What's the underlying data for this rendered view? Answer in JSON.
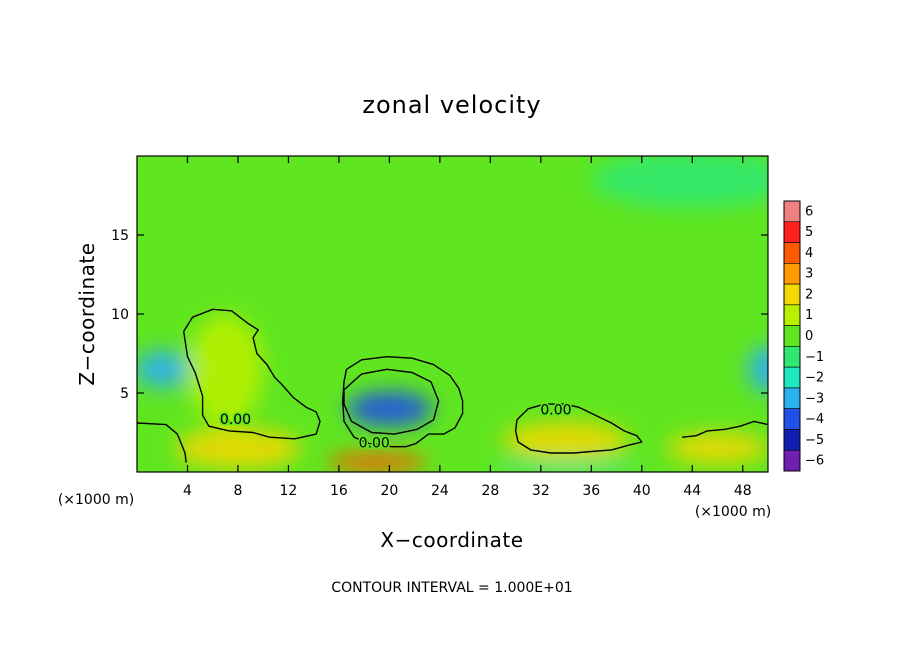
{
  "chart_data": {
    "type": "heatmap",
    "title": "zonal velocity",
    "xlabel": "X−coordinate",
    "ylabel": "Z−coordinate",
    "x_unit": "(×1000 m)",
    "z_unit": "(×1000 m)",
    "xlim": [
      0,
      50
    ],
    "ylim": [
      0,
      20
    ],
    "x_ticks": [
      4,
      8,
      12,
      16,
      20,
      24,
      28,
      32,
      36,
      40,
      44,
      48
    ],
    "x_tick_labels": [
      "4",
      "8",
      "12",
      "16",
      "20",
      "24",
      "28",
      "32",
      "36",
      "40",
      "44",
      "48"
    ],
    "y_ticks": [
      5,
      10,
      15
    ],
    "y_tick_labels": [
      "5",
      "10",
      "15"
    ],
    "colorbar": {
      "levels": [
        6,
        5,
        4,
        3,
        2,
        1,
        0,
        -1,
        -2,
        -3,
        -4,
        -5,
        -6
      ],
      "labels": [
        "6",
        "5",
        "4",
        "3",
        "2",
        "1",
        "0",
        "−1",
        "−2",
        "−3",
        "−4",
        "−5",
        "−6"
      ],
      "colors": [
        "#f08080",
        "#ff2020",
        "#ff5a00",
        "#ff9a00",
        "#f0d800",
        "#b8f000",
        "#60e620",
        "#30e870",
        "#20e8c0",
        "#2bb0f0",
        "#2050e8",
        "#1020b0",
        "#7020b0"
      ]
    },
    "background_value": 0.4,
    "features": [
      {
        "x": 2,
        "z": 6.5,
        "value": -3.0,
        "rx": 2.2,
        "rz": 1.2
      },
      {
        "x": 50,
        "z": 6.5,
        "value": -3.0,
        "rx": 1.6,
        "rz": 1.5
      },
      {
        "x": 20,
        "z": 4.0,
        "value": -4.0,
        "rx": 3.4,
        "rz": 1.1
      },
      {
        "x": 19,
        "z": 0.6,
        "value": 3.5,
        "rx": 4.0,
        "rz": 0.6
      },
      {
        "x": 34,
        "z": 2.0,
        "value": 2.0,
        "rx": 5.0,
        "rz": 1.2
      },
      {
        "x": 46,
        "z": 1.5,
        "value": 2.0,
        "rx": 4.0,
        "rz": 1.0
      },
      {
        "x": 8,
        "z": 1.5,
        "value": 1.5,
        "rx": 5.0,
        "rz": 1.3
      },
      {
        "x": 7,
        "z": 6.5,
        "value": 1.0,
        "rx": 3.0,
        "rz": 3.5
      },
      {
        "x": 44,
        "z": 18.5,
        "value": -1.2,
        "rx": 8.0,
        "rz": 1.8
      },
      {
        "x": 34,
        "z": 0.2,
        "value": -2.0,
        "rx": 6.0,
        "rz": 0.3
      }
    ],
    "contours": [
      {
        "label": "0.00",
        "label_x": 7.8,
        "label_z": 3.3,
        "points": [
          [
            3.7,
            8.9
          ],
          [
            4.4,
            9.8
          ],
          [
            6.0,
            10.3
          ],
          [
            7.5,
            10.2
          ],
          [
            8.8,
            9.4
          ],
          [
            9.6,
            9.0
          ],
          [
            9.2,
            8.5
          ],
          [
            9.5,
            7.5
          ],
          [
            10.3,
            6.8
          ],
          [
            10.9,
            6.0
          ],
          [
            11.4,
            5.6
          ],
          [
            12.4,
            4.7
          ],
          [
            13.4,
            4.1
          ],
          [
            14.2,
            3.8
          ],
          [
            14.5,
            3.2
          ],
          [
            14.2,
            2.4
          ],
          [
            12.5,
            2.1
          ],
          [
            10.5,
            2.2
          ],
          [
            9.2,
            2.5
          ],
          [
            7.3,
            2.6
          ],
          [
            5.7,
            2.9
          ],
          [
            5.2,
            3.6
          ],
          [
            5.2,
            4.8
          ],
          [
            4.6,
            6.3
          ],
          [
            4.0,
            7.3
          ],
          [
            3.7,
            8.9
          ]
        ]
      },
      {
        "label": "0.00",
        "label_x": 18.8,
        "label_z": 1.8,
        "points": [
          [
            16.6,
            6.5
          ],
          [
            17.8,
            7.1
          ],
          [
            19.8,
            7.3
          ],
          [
            21.8,
            7.2
          ],
          [
            23.5,
            6.8
          ],
          [
            24.8,
            6.1
          ],
          [
            25.5,
            5.3
          ],
          [
            25.8,
            4.5
          ],
          [
            25.8,
            3.7
          ],
          [
            25.2,
            2.8
          ],
          [
            24.3,
            2.4
          ],
          [
            23.1,
            2.4
          ],
          [
            22.1,
            1.8
          ],
          [
            21.3,
            1.6
          ],
          [
            20.2,
            1.6
          ],
          [
            18.4,
            1.8
          ],
          [
            17.2,
            2.2
          ],
          [
            16.4,
            3.2
          ],
          [
            16.3,
            4.5
          ],
          [
            16.4,
            5.7
          ],
          [
            16.6,
            6.5
          ]
        ]
      },
      {
        "label": "",
        "label_x": 0,
        "label_z": 0,
        "points": [
          [
            16.4,
            5.2
          ],
          [
            17.8,
            6.2
          ],
          [
            19.8,
            6.5
          ],
          [
            21.8,
            6.3
          ],
          [
            23.3,
            5.7
          ],
          [
            23.9,
            4.5
          ],
          [
            23.5,
            3.3
          ],
          [
            22.2,
            2.7
          ],
          [
            20.4,
            2.4
          ],
          [
            18.6,
            2.5
          ],
          [
            17.0,
            3.2
          ],
          [
            16.4,
            4.3
          ],
          [
            16.4,
            5.2
          ]
        ]
      },
      {
        "label": "0.00",
        "label_x": 33.2,
        "label_z": 3.9,
        "points": [
          [
            30.1,
            3.3
          ],
          [
            31.0,
            4.0
          ],
          [
            32.3,
            4.3
          ],
          [
            33.8,
            4.3
          ],
          [
            35.0,
            4.1
          ],
          [
            36.3,
            3.6
          ],
          [
            37.6,
            3.1
          ],
          [
            38.6,
            2.6
          ],
          [
            39.6,
            2.3
          ],
          [
            40.0,
            1.9
          ],
          [
            39.0,
            1.7
          ],
          [
            37.6,
            1.4
          ],
          [
            36.0,
            1.3
          ],
          [
            34.6,
            1.2
          ],
          [
            32.8,
            1.2
          ],
          [
            31.2,
            1.4
          ],
          [
            30.2,
            1.9
          ],
          [
            30.0,
            2.6
          ],
          [
            30.1,
            3.3
          ]
        ]
      },
      {
        "label": "",
        "label_x": 0,
        "label_z": 0,
        "points": [
          [
            0,
            3.1
          ],
          [
            2.3,
            3.0
          ],
          [
            3.2,
            2.4
          ],
          [
            3.8,
            1.2
          ],
          [
            3.9,
            0.6
          ]
        ]
      },
      {
        "label": "",
        "label_x": 0,
        "label_z": 0,
        "points": [
          [
            43.2,
            2.2
          ],
          [
            44.3,
            2.3
          ],
          [
            45.2,
            2.6
          ],
          [
            46.6,
            2.7
          ],
          [
            47.8,
            2.9
          ],
          [
            48.9,
            3.2
          ],
          [
            50,
            3.0
          ]
        ]
      }
    ]
  },
  "footer": "CONTOUR INTERVAL = 1.000E+01"
}
